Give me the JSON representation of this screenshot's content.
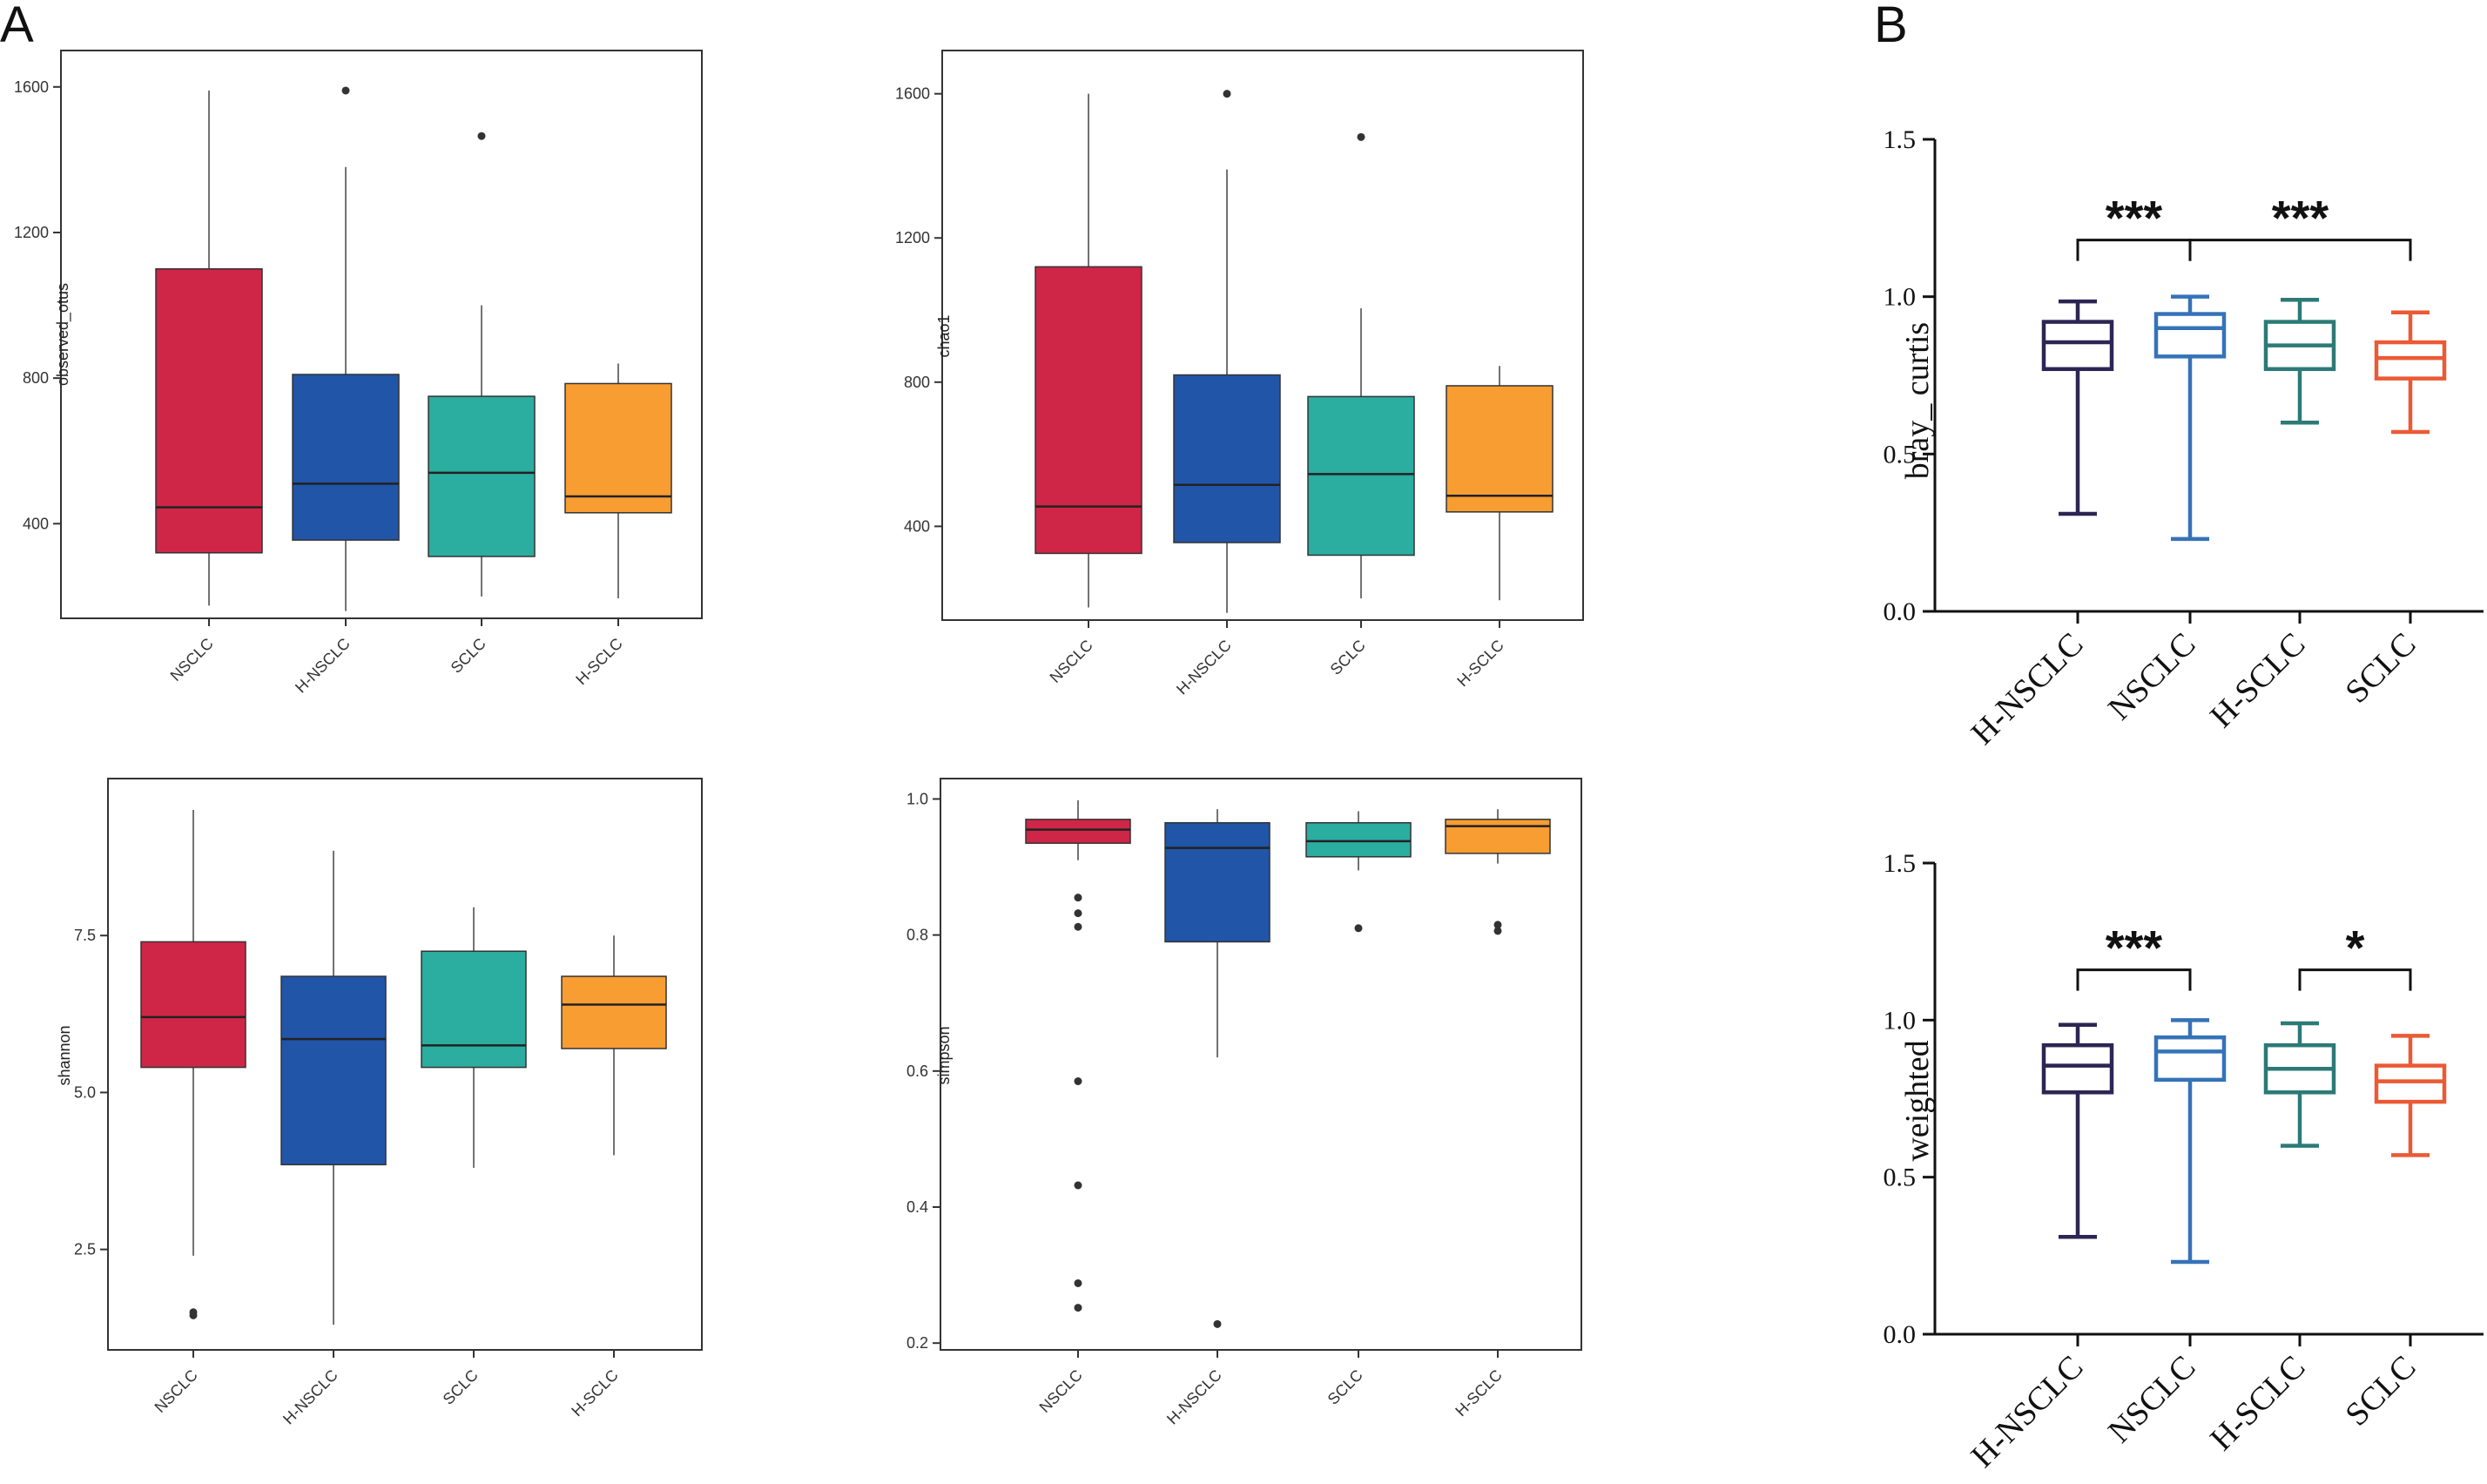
{
  "panels": {
    "a": "A",
    "b": "B"
  },
  "colors": {
    "NSCLC": "#cf2647",
    "H-NSCLC": "#2155a8",
    "SCLC": "#2bada0",
    "H-SCLC": "#f89d32",
    "prism": {
      "H-NSCLC": "#2d2553",
      "NSCLC": "#3573b8",
      "H-SCLC": "#2c7a77",
      "SCLC": "#ea5a34"
    }
  },
  "chart_data": [
    {
      "id": "observed_otus",
      "type": "box",
      "ylabel": "observed_otus",
      "ylim": [
        140,
        1700
      ],
      "yticks": [
        400,
        800,
        1200,
        1600
      ],
      "ytick_labels": [
        "400",
        "800",
        "1200",
        "1600"
      ],
      "categories": [
        "NSCLC",
        "H-NSCLC",
        "SCLC",
        "H-SCLC"
      ],
      "boxes": [
        {
          "q1": 320,
          "median": 445,
          "q3": 1100,
          "whisker_low": 175,
          "whisker_high": 1590,
          "outliers": []
        },
        {
          "q1": 355,
          "median": 510,
          "q3": 810,
          "whisker_low": 160,
          "whisker_high": 1380,
          "outliers": [
            1590
          ]
        },
        {
          "q1": 310,
          "median": 540,
          "q3": 750,
          "whisker_low": 200,
          "whisker_high": 1000,
          "outliers": [
            1465
          ]
        },
        {
          "q1": 430,
          "median": 475,
          "q3": 785,
          "whisker_low": 195,
          "whisker_high": 840,
          "outliers": []
        }
      ]
    },
    {
      "id": "chao1",
      "type": "box",
      "ylabel": "chao1",
      "ylim": [
        140,
        1720
      ],
      "yticks": [
        400,
        800,
        1200,
        1600
      ],
      "ytick_labels": [
        "400",
        "800",
        "1200",
        "1600"
      ],
      "categories": [
        "NSCLC",
        "H-NSCLC",
        "SCLC",
        "H-SCLC"
      ],
      "boxes": [
        {
          "q1": 325,
          "median": 455,
          "q3": 1120,
          "whisker_low": 175,
          "whisker_high": 1600,
          "outliers": []
        },
        {
          "q1": 355,
          "median": 515,
          "q3": 820,
          "whisker_low": 160,
          "whisker_high": 1390,
          "outliers": [
            1600
          ]
        },
        {
          "q1": 320,
          "median": 545,
          "q3": 760,
          "whisker_low": 200,
          "whisker_high": 1005,
          "outliers": [
            1480
          ]
        },
        {
          "q1": 440,
          "median": 485,
          "q3": 790,
          "whisker_low": 195,
          "whisker_high": 845,
          "outliers": []
        }
      ]
    },
    {
      "id": "shannon",
      "type": "box",
      "ylabel": "shannon",
      "ylim": [
        0.9,
        10.0
      ],
      "yticks": [
        2.5,
        5.0,
        7.5
      ],
      "ytick_labels": [
        "2.5",
        "5.0",
        "7.5"
      ],
      "categories": [
        "NSCLC",
        "H-NSCLC",
        "SCLC",
        "H-SCLC"
      ],
      "boxes": [
        {
          "q1": 5.4,
          "median": 6.2,
          "q3": 7.4,
          "whisker_low": 2.4,
          "whisker_high": 9.5,
          "outliers": [
            1.45,
            1.5
          ]
        },
        {
          "q1": 3.85,
          "median": 5.85,
          "q3": 6.85,
          "whisker_low": 1.3,
          "whisker_high": 8.85,
          "outliers": []
        },
        {
          "q1": 5.4,
          "median": 5.75,
          "q3": 7.25,
          "whisker_low": 3.8,
          "whisker_high": 7.95,
          "outliers": []
        },
        {
          "q1": 5.7,
          "median": 6.4,
          "q3": 6.85,
          "whisker_low": 4.0,
          "whisker_high": 7.5,
          "outliers": []
        }
      ]
    },
    {
      "id": "simpson",
      "type": "box",
      "ylabel": "simpson",
      "ylim": [
        0.19,
        1.03
      ],
      "yticks": [
        0.2,
        0.4,
        0.6,
        0.8,
        1.0
      ],
      "ytick_labels": [
        "0.2",
        "0.4",
        "0.6",
        "0.8",
        "1.0"
      ],
      "categories": [
        "NSCLC",
        "H-NSCLC",
        "SCLC",
        "H-SCLC"
      ],
      "boxes": [
        {
          "q1": 0.935,
          "median": 0.955,
          "q3": 0.97,
          "whisker_low": 0.91,
          "whisker_high": 0.998,
          "outliers": [
            0.855,
            0.832,
            0.812,
            0.585,
            0.432,
            0.288,
            0.252
          ]
        },
        {
          "q1": 0.79,
          "median": 0.928,
          "q3": 0.965,
          "whisker_low": 0.62,
          "whisker_high": 0.985,
          "outliers": [
            0.228
          ]
        },
        {
          "q1": 0.915,
          "median": 0.938,
          "q3": 0.965,
          "whisker_low": 0.895,
          "whisker_high": 0.982,
          "outliers": [
            0.81
          ]
        },
        {
          "q1": 0.92,
          "median": 0.96,
          "q3": 0.97,
          "whisker_low": 0.905,
          "whisker_high": 0.985,
          "outliers": [
            0.815,
            0.806
          ]
        }
      ]
    },
    {
      "id": "bray_curtis",
      "type": "box",
      "ylabel": "bray_ curtis",
      "ylim": [
        0.0,
        1.5
      ],
      "yticks": [
        0.0,
        0.5,
        1.0,
        1.5
      ],
      "ytick_labels": [
        "0.0",
        "0.5",
        "1.0",
        "1.5"
      ],
      "categories": [
        "H-NSCLC",
        "NSCLC",
        "H-SCLC",
        "SCLC"
      ],
      "boxes": [
        {
          "q1": 0.77,
          "median": 0.855,
          "q3": 0.92,
          "whisker_low": 0.31,
          "whisker_high": 0.985
        },
        {
          "q1": 0.81,
          "median": 0.9,
          "q3": 0.945,
          "whisker_low": 0.23,
          "whisker_high": 1.0
        },
        {
          "q1": 0.77,
          "median": 0.845,
          "q3": 0.92,
          "whisker_low": 0.6,
          "whisker_high": 0.99
        },
        {
          "q1": 0.74,
          "median": 0.805,
          "q3": 0.855,
          "whisker_low": 0.57,
          "whisker_high": 0.95
        }
      ],
      "significance": [
        {
          "from": 0,
          "to": 1,
          "y": 1.18,
          "label": "***"
        },
        {
          "from": 1,
          "to": 3,
          "y": 1.18,
          "label": "***"
        }
      ]
    },
    {
      "id": "weighted",
      "type": "box",
      "ylabel": "weighted",
      "ylim": [
        0.0,
        1.5
      ],
      "yticks": [
        0.0,
        0.5,
        1.0,
        1.5
      ],
      "ytick_labels": [
        "0.0",
        "0.5",
        "1.0",
        "1.5"
      ],
      "categories": [
        "H-NSCLC",
        "NSCLC",
        "H-SCLC",
        "SCLC"
      ],
      "boxes": [
        {
          "q1": 0.77,
          "median": 0.855,
          "q3": 0.92,
          "whisker_low": 0.31,
          "whisker_high": 0.985
        },
        {
          "q1": 0.81,
          "median": 0.9,
          "q3": 0.945,
          "whisker_low": 0.23,
          "whisker_high": 1.0
        },
        {
          "q1": 0.77,
          "median": 0.845,
          "q3": 0.92,
          "whisker_low": 0.6,
          "whisker_high": 0.99
        },
        {
          "q1": 0.74,
          "median": 0.805,
          "q3": 0.855,
          "whisker_low": 0.57,
          "whisker_high": 0.95
        }
      ],
      "significance": [
        {
          "from": 0,
          "to": 1,
          "y": 1.16,
          "label": "***"
        },
        {
          "from": 2,
          "to": 3,
          "y": 1.16,
          "label": "*"
        }
      ]
    }
  ]
}
